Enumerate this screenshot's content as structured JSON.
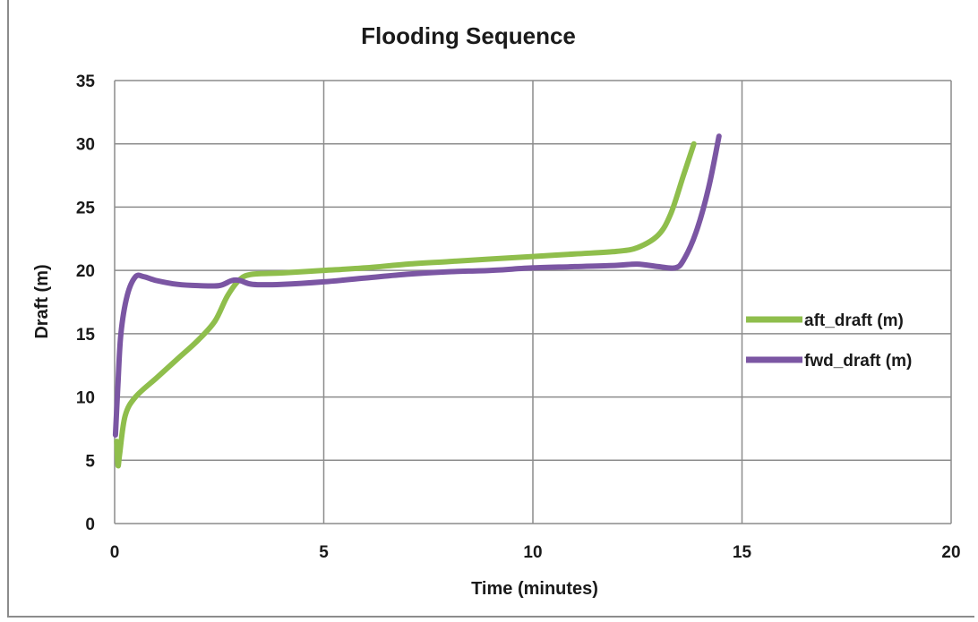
{
  "chart_data": {
    "type": "line",
    "title": "Flooding Sequence",
    "xlabel": "Time (minutes)",
    "ylabel": "Draft (m)",
    "xlim": [
      0,
      20
    ],
    "ylim": [
      0,
      35
    ],
    "xticks": [
      0,
      5,
      10,
      15,
      20
    ],
    "yticks": [
      0,
      5,
      10,
      15,
      20,
      25,
      30,
      35
    ],
    "xtick_labels": [
      "0",
      "5",
      "10",
      "15",
      "20"
    ],
    "ytick_labels": [
      "0",
      "5",
      "10",
      "15",
      "20",
      "25",
      "30",
      "35"
    ],
    "grid": true,
    "legend_position": "right",
    "series": [
      {
        "name": "aft_draft (m)",
        "color": "#8fbe4c",
        "points": [
          [
            0.05,
            6.5
          ],
          [
            0.08,
            4.6
          ],
          [
            0.12,
            5.5
          ],
          [
            0.25,
            8.5
          ],
          [
            0.5,
            10.0
          ],
          [
            1.0,
            11.5
          ],
          [
            1.5,
            13.0
          ],
          [
            2.0,
            14.5
          ],
          [
            2.4,
            16.0
          ],
          [
            2.7,
            18.0
          ],
          [
            3.0,
            19.3
          ],
          [
            3.3,
            19.7
          ],
          [
            4.0,
            19.8
          ],
          [
            5.0,
            20.0
          ],
          [
            6.0,
            20.2
          ],
          [
            7.0,
            20.5
          ],
          [
            8.0,
            20.7
          ],
          [
            9.0,
            20.9
          ],
          [
            10.0,
            21.1
          ],
          [
            11.0,
            21.3
          ],
          [
            12.0,
            21.5
          ],
          [
            12.5,
            21.8
          ],
          [
            13.0,
            22.8
          ],
          [
            13.3,
            24.5
          ],
          [
            13.6,
            27.5
          ],
          [
            13.85,
            30.0
          ]
        ]
      },
      {
        "name": "fwd_draft (m)",
        "color": "#7b56a3",
        "points": [
          [
            0.02,
            7.0
          ],
          [
            0.08,
            11.0
          ],
          [
            0.15,
            15.0
          ],
          [
            0.3,
            18.0
          ],
          [
            0.5,
            19.5
          ],
          [
            0.7,
            19.5
          ],
          [
            1.0,
            19.2
          ],
          [
            1.5,
            18.9
          ],
          [
            2.0,
            18.8
          ],
          [
            2.5,
            18.8
          ],
          [
            2.8,
            19.2
          ],
          [
            3.0,
            19.2
          ],
          [
            3.3,
            18.9
          ],
          [
            4.0,
            18.9
          ],
          [
            5.0,
            19.1
          ],
          [
            6.0,
            19.4
          ],
          [
            7.0,
            19.7
          ],
          [
            8.0,
            19.9
          ],
          [
            9.0,
            20.0
          ],
          [
            10.0,
            20.2
          ],
          [
            11.0,
            20.3
          ],
          [
            12.0,
            20.4
          ],
          [
            12.5,
            20.5
          ],
          [
            13.0,
            20.3
          ],
          [
            13.4,
            20.2
          ],
          [
            13.6,
            20.8
          ],
          [
            13.9,
            23.0
          ],
          [
            14.2,
            26.5
          ],
          [
            14.45,
            30.6
          ]
        ]
      }
    ]
  }
}
